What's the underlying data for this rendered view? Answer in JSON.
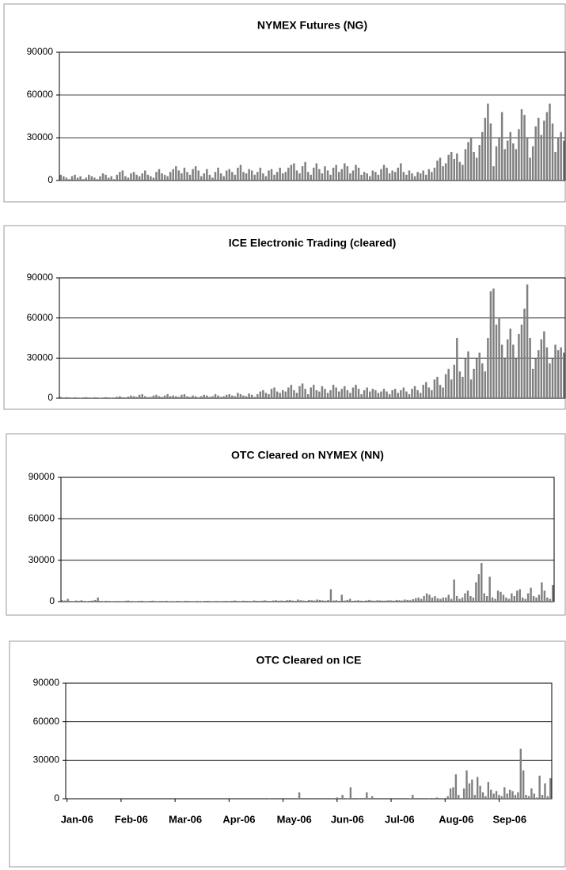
{
  "chart_data": [
    {
      "type": "bar",
      "title": "NYMEX Futures (NG)",
      "color": "#808080",
      "ylim": [
        0,
        90000
      ],
      "yticks": [
        0,
        30000,
        60000,
        90000
      ],
      "grid": true,
      "values": [
        4000,
        3000,
        2000,
        1000,
        3000,
        4000,
        2000,
        3000,
        1000,
        2000,
        4000,
        3000,
        2000,
        1000,
        3000,
        5000,
        4000,
        2000,
        3000,
        1000,
        4000,
        6000,
        7000,
        3000,
        2000,
        5000,
        6000,
        4000,
        3000,
        5000,
        7000,
        4000,
        3000,
        2000,
        6000,
        8000,
        5000,
        4000,
        3000,
        6000,
        8000,
        10000,
        7000,
        5000,
        9000,
        6000,
        4000,
        8000,
        10000,
        7000,
        3000,
        5000,
        8000,
        4000,
        2000,
        6000,
        9000,
        5000,
        3000,
        7000,
        8000,
        6000,
        4000,
        9000,
        11000,
        6000,
        5000,
        8000,
        7000,
        4000,
        6000,
        9000,
        5000,
        3000,
        7000,
        8000,
        4000,
        6000,
        9000,
        5000,
        6000,
        9000,
        11000,
        12000,
        7000,
        5000,
        10000,
        13000,
        6000,
        4000,
        9000,
        12000,
        8000,
        5000,
        10000,
        7000,
        4000,
        9000,
        11000,
        6000,
        8000,
        12000,
        10000,
        5000,
        7000,
        11000,
        9000,
        4000,
        6000,
        5000,
        3000,
        7000,
        6000,
        4000,
        8000,
        11000,
        9000,
        5000,
        7000,
        6000,
        9000,
        12000,
        6000,
        4000,
        7000,
        5000,
        3000,
        6000,
        5000,
        7000,
        4000,
        8000,
        6000,
        9000,
        14000,
        16000,
        10000,
        12000,
        18000,
        20000,
        15000,
        19000,
        13000,
        11000,
        22000,
        27000,
        30000,
        20000,
        16000,
        25000,
        34000,
        44000,
        54000,
        40000,
        10000,
        24000,
        30000,
        48000,
        22000,
        28000,
        34000,
        26000,
        22000,
        36000,
        50000,
        46000,
        30000,
        16000,
        24000,
        38000,
        44000,
        32000,
        42000,
        48000,
        54000,
        40000,
        20000,
        30000,
        34000,
        28000
      ]
    },
    {
      "type": "bar",
      "title": "ICE Electronic Trading (cleared)",
      "color": "#808080",
      "ylim": [
        0,
        90000
      ],
      "yticks": [
        0,
        30000,
        60000,
        90000
      ],
      "grid": true,
      "values": [
        1000,
        500,
        800,
        600,
        400,
        700,
        500,
        300,
        600,
        800,
        500,
        400,
        700,
        600,
        300,
        500,
        800,
        600,
        400,
        500,
        1000,
        1500,
        800,
        600,
        1200,
        2000,
        1500,
        1000,
        2500,
        3000,
        1500,
        800,
        1000,
        2000,
        2500,
        1500,
        1000,
        2000,
        3000,
        1500,
        2000,
        1500,
        1000,
        2500,
        3000,
        1500,
        1000,
        2000,
        1500,
        800,
        1500,
        2500,
        2000,
        1000,
        1500,
        3000,
        2000,
        1000,
        1500,
        2500,
        3000,
        2000,
        1500,
        4000,
        3000,
        2000,
        1500,
        3500,
        2500,
        1000,
        3000,
        5000,
        6000,
        4000,
        3000,
        7000,
        8000,
        5000,
        4000,
        6000,
        5000,
        8000,
        10000,
        6000,
        4000,
        9000,
        11000,
        7000,
        3000,
        8000,
        10000,
        6000,
        5000,
        9000,
        7000,
        4000,
        6000,
        10000,
        8000,
        5000,
        7000,
        9000,
        6000,
        4000,
        8000,
        10000,
        7000,
        3000,
        6000,
        8000,
        5000,
        7000,
        6000,
        4000,
        5000,
        7000,
        5000,
        3000,
        6000,
        7000,
        4000,
        6000,
        8000,
        5000,
        3000,
        7000,
        9000,
        6000,
        4000,
        10000,
        12000,
        8000,
        6000,
        14000,
        16000,
        10000,
        8000,
        18000,
        22000,
        14000,
        25000,
        45000,
        20000,
        16000,
        30000,
        35000,
        14000,
        22000,
        30000,
        34000,
        26000,
        20000,
        45000,
        80000,
        82000,
        55000,
        60000,
        40000,
        30000,
        44000,
        52000,
        40000,
        30000,
        48000,
        55000,
        67000,
        85000,
        45000,
        22000,
        30000,
        36000,
        44000,
        50000,
        38000,
        26000,
        30000,
        40000,
        36000,
        38000,
        34000
      ]
    },
    {
      "type": "bar",
      "title": "OTC Cleared on NYMEX (NN)",
      "color": "#808080",
      "ylim": [
        0,
        90000
      ],
      "yticks": [
        0,
        30000,
        60000,
        90000
      ],
      "grid": true,
      "values": [
        1000,
        800,
        2000,
        500,
        400,
        800,
        600,
        1000,
        500,
        400,
        600,
        800,
        1200,
        3000,
        500,
        400,
        600,
        500,
        300,
        400,
        500,
        400,
        300,
        600,
        800,
        500,
        400,
        300,
        500,
        600,
        400,
        300,
        500,
        700,
        400,
        300,
        500,
        400,
        600,
        300,
        400,
        300,
        500,
        400,
        300,
        600,
        500,
        400,
        300,
        500,
        400,
        300,
        500,
        600,
        400,
        300,
        500,
        400,
        300,
        500,
        500,
        400,
        600,
        800,
        500,
        400,
        700,
        600,
        500,
        400,
        800,
        600,
        500,
        700,
        900,
        600,
        500,
        800,
        1000,
        700,
        800,
        600,
        1000,
        1200,
        800,
        600,
        1500,
        1000,
        800,
        600,
        1200,
        1000,
        800,
        1500,
        1200,
        900,
        700,
        1100,
        9000,
        800,
        1000,
        600,
        5000,
        800,
        1200,
        2000,
        600,
        800,
        1000,
        700,
        600,
        900,
        1200,
        800,
        700,
        1000,
        900,
        700,
        800,
        1000,
        900,
        700,
        1200,
        1000,
        800,
        1500,
        1200,
        1000,
        1800,
        2500,
        3000,
        2000,
        4000,
        6000,
        5000,
        3000,
        4000,
        2500,
        2000,
        3000,
        3000,
        5000,
        2000,
        16000,
        4000,
        2000,
        3000,
        6000,
        8000,
        4000,
        3000,
        14000,
        20000,
        28000,
        6000,
        4000,
        18000,
        3000,
        2000,
        8000,
        7000,
        5000,
        3000,
        2000,
        6000,
        4000,
        8000,
        9000,
        3000,
        2000,
        6000,
        10000,
        4000,
        3000,
        5000,
        14000,
        8000,
        3000,
        2000,
        12000
      ]
    },
    {
      "type": "bar",
      "title": "OTC Cleared on ICE",
      "color": "#808080",
      "ylim": [
        0,
        90000
      ],
      "yticks": [
        0,
        30000,
        60000,
        90000
      ],
      "grid": true,
      "categories": [
        "Jan-06",
        null,
        null,
        null,
        null,
        null,
        null,
        null,
        null,
        null,
        null,
        null,
        null,
        null,
        null,
        null,
        null,
        null,
        null,
        null,
        "Feb-06",
        null,
        null,
        null,
        null,
        null,
        null,
        null,
        null,
        null,
        null,
        null,
        null,
        null,
        null,
        null,
        null,
        null,
        null,
        null,
        "Mar-06",
        null,
        null,
        null,
        null,
        null,
        null,
        null,
        null,
        null,
        null,
        null,
        null,
        null,
        null,
        null,
        null,
        null,
        null,
        null,
        "Apr-06",
        null,
        null,
        null,
        null,
        null,
        null,
        null,
        null,
        null,
        null,
        null,
        null,
        null,
        null,
        null,
        null,
        null,
        null,
        null,
        "May-06",
        null,
        null,
        null,
        null,
        null,
        null,
        null,
        null,
        null,
        null,
        null,
        null,
        null,
        null,
        null,
        null,
        null,
        null,
        null,
        "Jun-06",
        null,
        null,
        null,
        null,
        null,
        null,
        null,
        null,
        null,
        null,
        null,
        null,
        null,
        null,
        null,
        null,
        null,
        null,
        null,
        "Jul-06",
        null,
        null,
        null,
        null,
        null,
        null,
        null,
        null,
        null,
        null,
        null,
        null,
        null,
        null,
        null,
        null,
        null,
        null,
        null,
        "Aug-06",
        null,
        null,
        null,
        null,
        null,
        null,
        null,
        null,
        null,
        null,
        null,
        null,
        null,
        null,
        null,
        null,
        null,
        null,
        null,
        "Sep-06",
        null,
        null,
        null,
        null,
        null,
        null,
        null,
        null,
        null,
        null,
        null,
        null,
        null,
        null,
        null,
        null,
        null,
        null,
        null
      ],
      "values": [
        0,
        0,
        0,
        0,
        0,
        0,
        0,
        0,
        0,
        0,
        0,
        0,
        0,
        0,
        0,
        0,
        0,
        0,
        0,
        0,
        0,
        0,
        0,
        0,
        0,
        0,
        0,
        0,
        0,
        0,
        0,
        0,
        0,
        0,
        0,
        0,
        0,
        0,
        0,
        0,
        0,
        0,
        0,
        0,
        0,
        0,
        0,
        0,
        0,
        0,
        0,
        0,
        0,
        0,
        0,
        0,
        0,
        0,
        0,
        0,
        0,
        0,
        0,
        0,
        0,
        0,
        0,
        0,
        0,
        0,
        0,
        0,
        0,
        0,
        0,
        500,
        0,
        0,
        0,
        0,
        0,
        0,
        0,
        0,
        0,
        0,
        5000,
        0,
        0,
        0,
        0,
        0,
        0,
        0,
        0,
        0,
        0,
        0,
        500,
        0,
        1000,
        0,
        3000,
        0,
        500,
        9000,
        0,
        0,
        500,
        0,
        0,
        5000,
        0,
        2000,
        0,
        0,
        0,
        0,
        0,
        0,
        0,
        0,
        0,
        0,
        0,
        0,
        0,
        500,
        3000,
        0,
        0,
        0,
        0,
        0,
        500,
        0,
        0,
        1000,
        0,
        500,
        0,
        2000,
        8000,
        9000,
        19000,
        3000,
        500,
        8000,
        22000,
        12000,
        15000,
        3000,
        17000,
        10000,
        5000,
        2000,
        13000,
        7000,
        4000,
        6000,
        3000,
        2000,
        9000,
        4000,
        7000,
        6000,
        3000,
        5000,
        39000,
        22000,
        3000,
        2000,
        8000,
        4000,
        1000,
        18000,
        3000,
        12000,
        2000,
        16000
      ]
    }
  ]
}
